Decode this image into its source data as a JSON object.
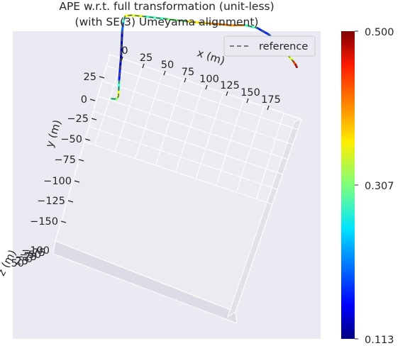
{
  "chart_data": {
    "type": "line",
    "projection": "3d",
    "title_line1": "APE w.r.t. full transformation (unit-less)",
    "title_line2": "(with SE(3) Umeyama alignment)",
    "xlabel": "x (m)",
    "ylabel": "y (m)",
    "zlabel": "z (m)",
    "x_ticks": [
      "0",
      "25",
      "50",
      "75",
      "100",
      "125",
      "150",
      "175"
    ],
    "y_ticks": [
      "25",
      "0",
      "−25",
      "−50",
      "−75",
      "−100",
      "−125",
      "−150"
    ],
    "z_ticks": [
      "−100",
      "−75",
      "−50",
      "−25",
      "0",
      "25",
      "50"
    ],
    "grid": true,
    "legend": {
      "position": "top-right",
      "entries": [
        "reference"
      ]
    },
    "colorbar": {
      "colormap": "jet",
      "min": 0.113,
      "max": 0.5,
      "ticks": [
        "0.500",
        "0.307",
        "0.113"
      ]
    },
    "series": [
      {
        "name": "reference",
        "style": "dashed",
        "points": [
          [
            2,
            -3
          ],
          [
            8,
            -5
          ],
          [
            9,
            -10
          ],
          [
            7,
            -20
          ],
          [
            4,
            -35
          ],
          [
            1,
            -52
          ],
          [
            -2,
            -70
          ],
          [
            -6,
            -90
          ],
          [
            -10,
            -110
          ],
          [
            -12,
            -125
          ],
          [
            -12,
            -134
          ],
          [
            -6,
            -138
          ],
          [
            10,
            -143
          ],
          [
            35,
            -150
          ],
          [
            60,
            -157
          ],
          [
            85,
            -165
          ],
          [
            110,
            -173
          ],
          [
            125,
            -180
          ],
          [
            140,
            -182
          ],
          [
            155,
            -178
          ],
          [
            170,
            -168
          ],
          [
            182,
            -158
          ],
          [
            192,
            -150
          ],
          [
            196,
            -146
          ],
          [
            198,
            -143
          ]
        ],
        "error": [
          0.28,
          0.3,
          0.33,
          0.36,
          0.2,
          0.14,
          0.13,
          0.12,
          0.15,
          0.25,
          0.32,
          0.38,
          0.3,
          0.27,
          0.34,
          0.38,
          0.42,
          0.37,
          0.2,
          0.15,
          0.22,
          0.3,
          0.38,
          0.46,
          0.5
        ]
      }
    ]
  }
}
